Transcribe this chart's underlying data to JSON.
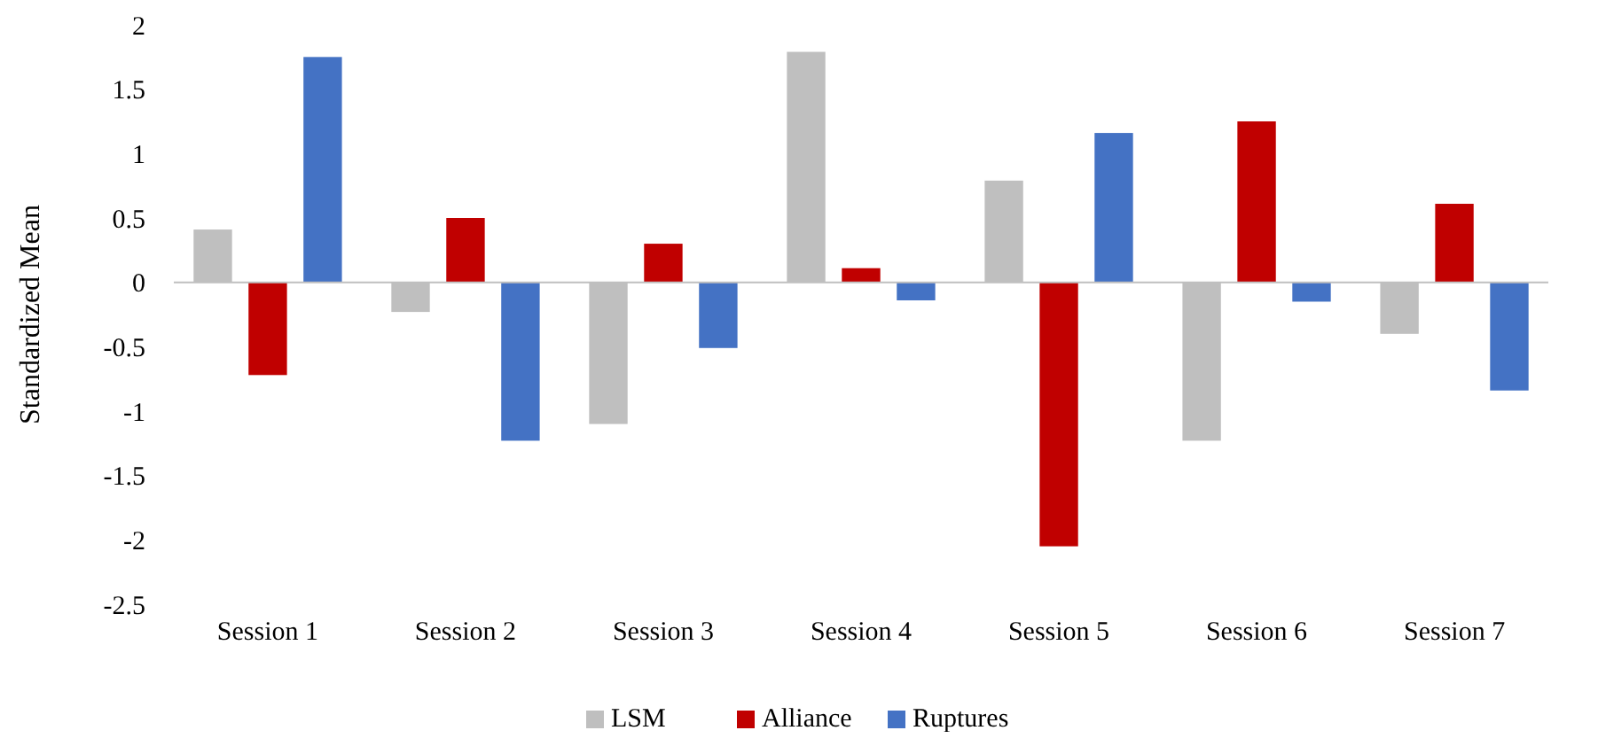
{
  "chart_data": {
    "type": "bar",
    "ylabel": "Standardized Mean",
    "categories": [
      "Session 1",
      "Session 2",
      "Session 3",
      "Session 4",
      "Session 5",
      "Session 6",
      "Session 7"
    ],
    "series": [
      {
        "name": "LSM",
        "color": "#bfbfbf",
        "values": [
          0.41,
          -0.23,
          -1.1,
          1.79,
          0.79,
          -1.23,
          -0.4
        ]
      },
      {
        "name": "Alliance",
        "color": "#c00000",
        "values": [
          -0.72,
          0.5,
          0.3,
          0.11,
          -2.05,
          1.25,
          0.61
        ]
      },
      {
        "name": "Ruptures",
        "color": "#4472c4",
        "values": [
          1.75,
          -1.23,
          -0.51,
          -0.14,
          1.16,
          -0.15,
          -0.84
        ]
      }
    ],
    "ylim": [
      -2.5,
      2
    ],
    "yticks": [
      2,
      1.5,
      1,
      0.5,
      0,
      -0.5,
      -1,
      -1.5,
      -2,
      -2.5
    ],
    "legend": "bottom"
  }
}
